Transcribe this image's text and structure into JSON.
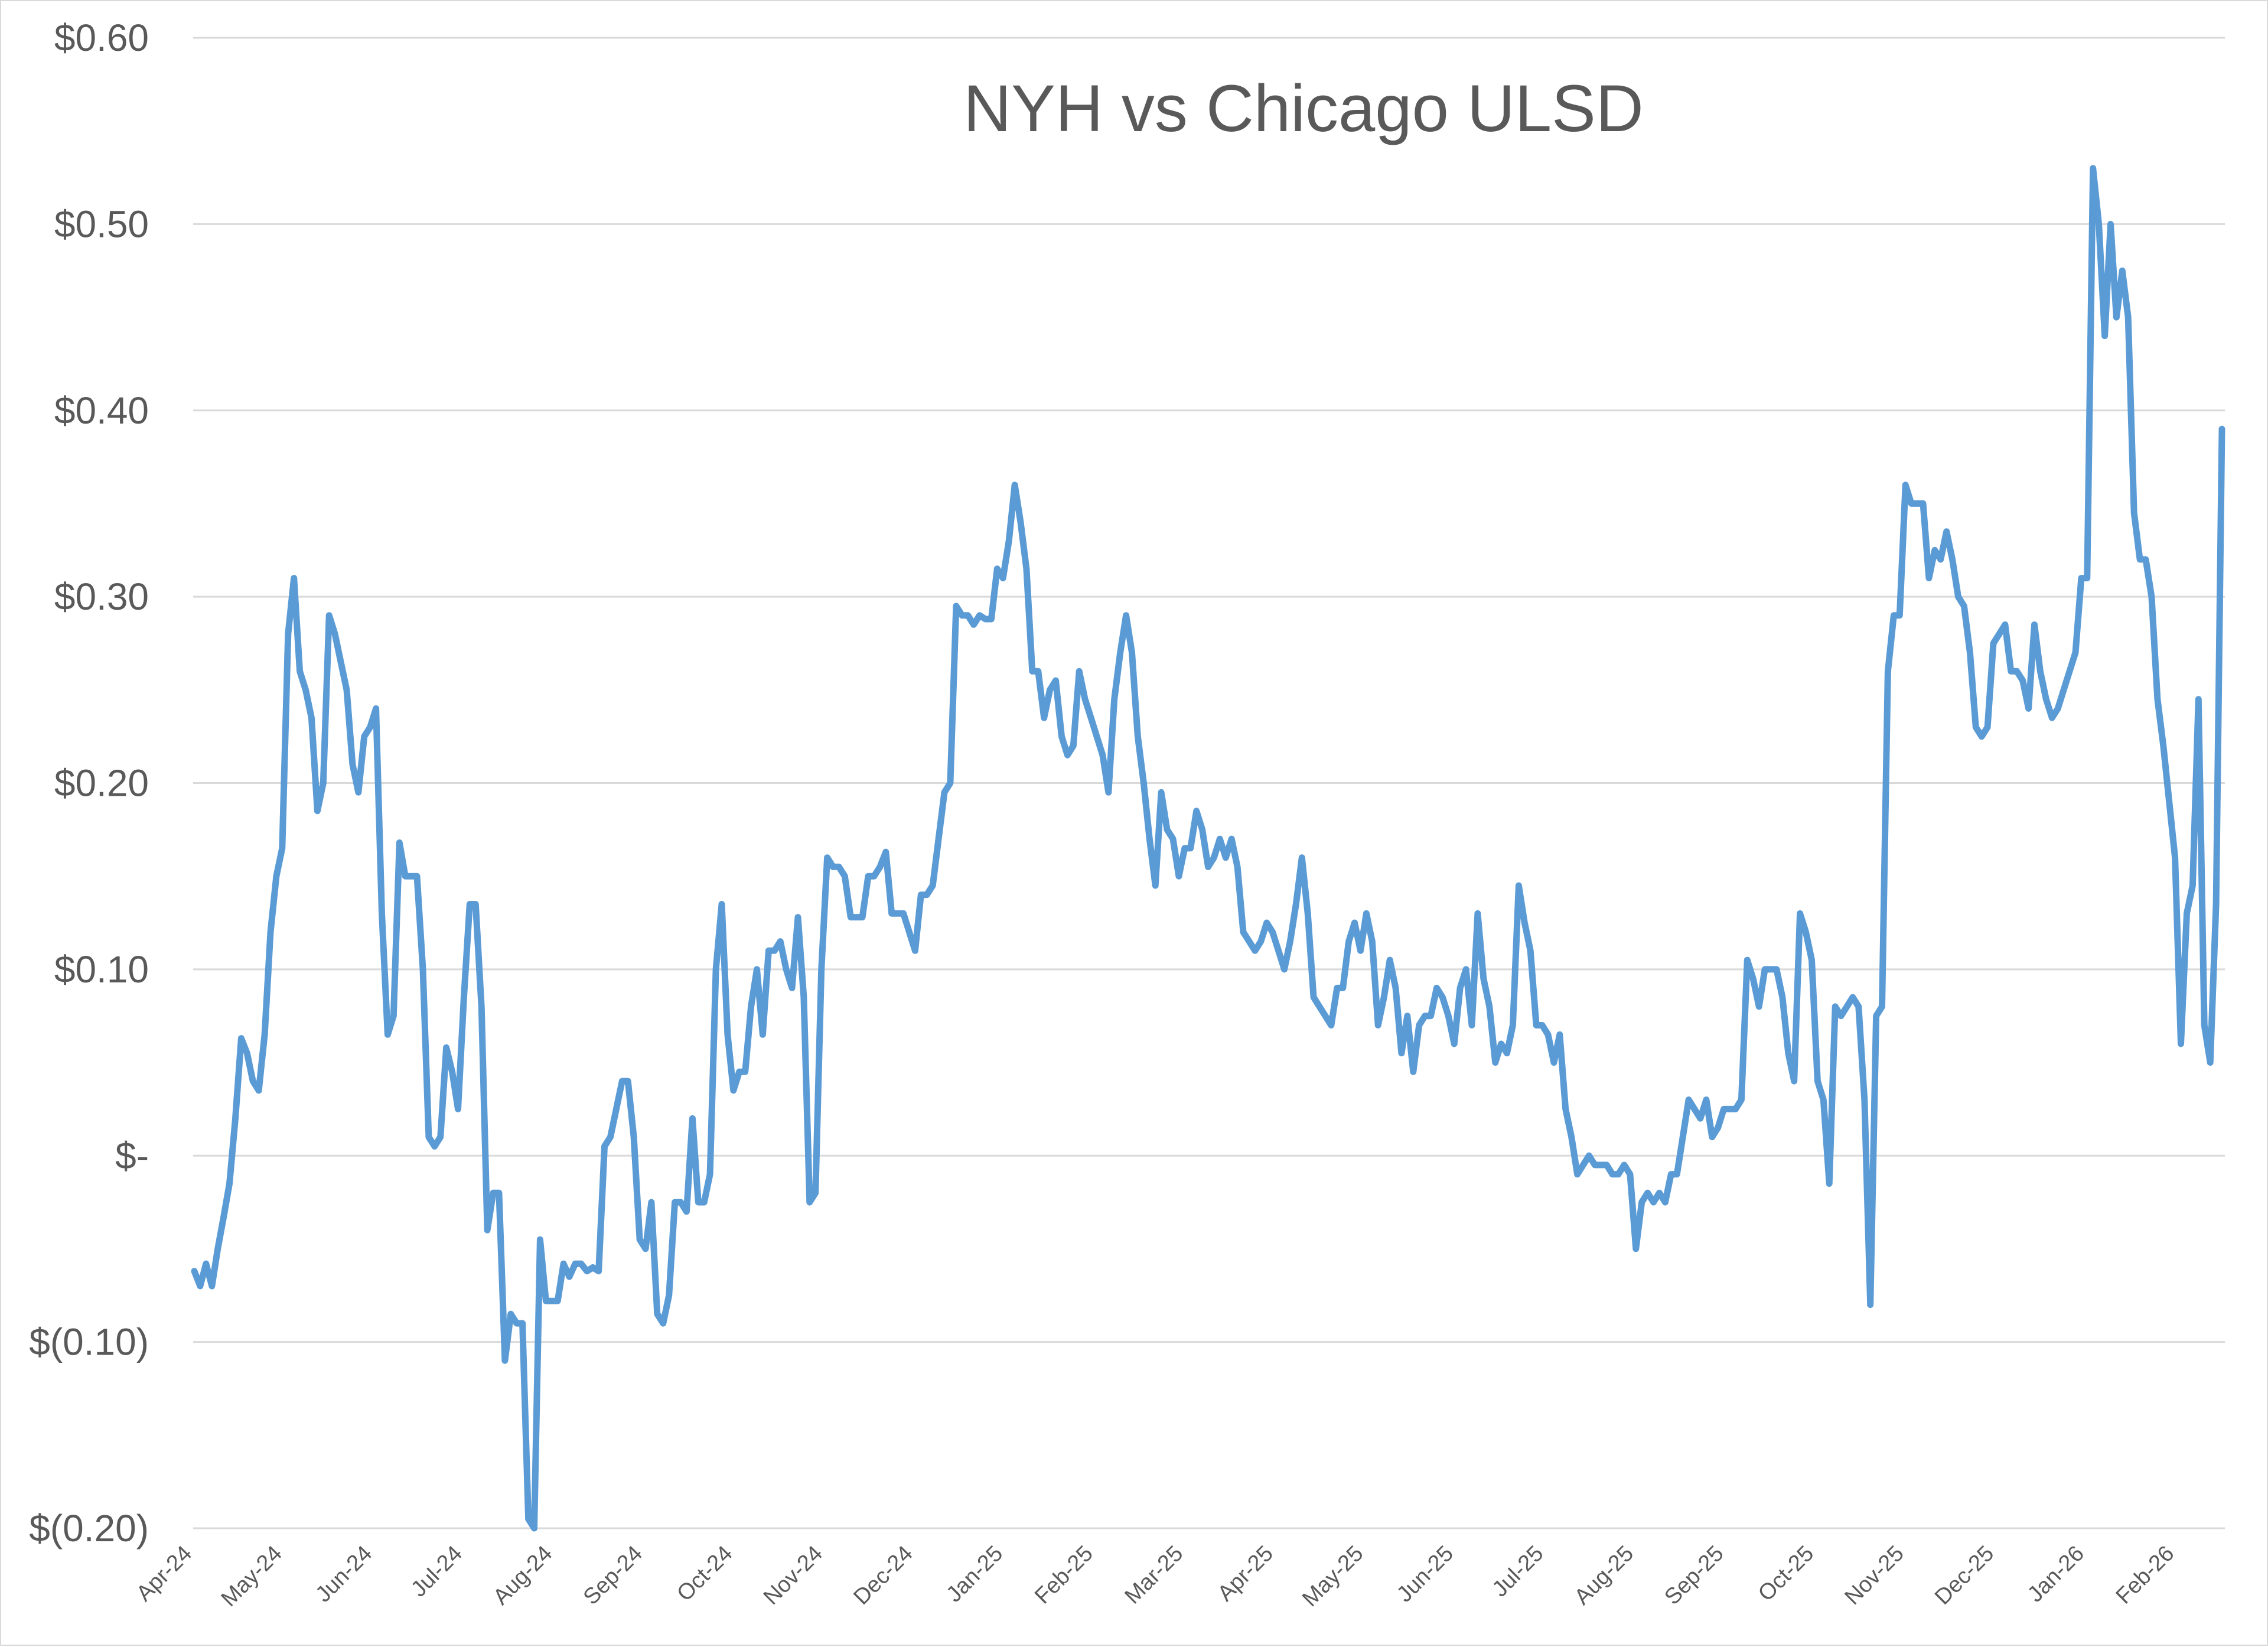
{
  "chart_data": {
    "type": "line",
    "title": "NYH vs Chicago ULSD",
    "xlabel": "",
    "ylabel": "",
    "ylim": [
      -0.2,
      0.6
    ],
    "yticks": [
      {
        "value": 0.6,
        "label": "$0.60"
      },
      {
        "value": 0.5,
        "label": "$0.50"
      },
      {
        "value": 0.4,
        "label": "$0.40"
      },
      {
        "value": 0.3,
        "label": "$0.30"
      },
      {
        "value": 0.2,
        "label": "$0.20"
      },
      {
        "value": 0.1,
        "label": "$0.10"
      },
      {
        "value": 0.0,
        "label": "$-"
      },
      {
        "value": -0.1,
        "label": "$(0.10)"
      },
      {
        "value": -0.2,
        "label": "$(0.20)"
      }
    ],
    "xticks": [
      "Apr-24",
      "May-24",
      "Jun-24",
      "Jul-24",
      "Aug-24",
      "Sep-24",
      "Oct-24",
      "Nov-24",
      "Dec-24",
      "Jan-25",
      "Feb-25",
      "Mar-25",
      "Apr-25",
      "May-25",
      "Jun-25",
      "Jul-25",
      "Aug-25",
      "Sep-25",
      "Oct-25",
      "Nov-25",
      "Dec-25",
      "Jan-26",
      "Feb-26"
    ],
    "grid": true,
    "legend": "none",
    "line_color": "#5b9bd5",
    "series": [
      {
        "values": [
          -0.062,
          -0.07,
          -0.058,
          -0.07,
          -0.05,
          -0.033,
          -0.015,
          0.02,
          0.063,
          0.055,
          0.04,
          0.035,
          0.065,
          0.12,
          0.15,
          0.165,
          0.28,
          0.31,
          0.26,
          0.25,
          0.235,
          0.185,
          0.2,
          0.29,
          0.28,
          0.265,
          0.25,
          0.21,
          0.195,
          0.225,
          0.23,
          0.24,
          0.13,
          0.065,
          0.075,
          0.168,
          0.15,
          0.15,
          0.15,
          0.1,
          0.01,
          0.005,
          0.01,
          0.058,
          0.045,
          0.025,
          0.085,
          0.135,
          0.135,
          0.08,
          -0.04,
          -0.02,
          -0.02,
          -0.11,
          -0.085,
          -0.09,
          -0.09,
          -0.195,
          -0.2,
          -0.045,
          -0.078,
          -0.078,
          -0.078,
          -0.058,
          -0.065,
          -0.058,
          -0.058,
          -0.062,
          -0.06,
          -0.062,
          0.005,
          0.01,
          0.025,
          0.04,
          0.04,
          0.01,
          -0.045,
          -0.05,
          -0.025,
          -0.085,
          -0.09,
          -0.075,
          -0.025,
          -0.025,
          -0.03,
          0.02,
          -0.025,
          -0.025,
          -0.01,
          0.1,
          0.135,
          0.065,
          0.035,
          0.045,
          0.045,
          0.08,
          0.1,
          0.065,
          0.11,
          0.11,
          0.115,
          0.1,
          0.09,
          0.128,
          0.085,
          -0.025,
          -0.02,
          0.1,
          0.16,
          0.155,
          0.155,
          0.15,
          0.128,
          0.128,
          0.128,
          0.15,
          0.15,
          0.155,
          0.163,
          0.13,
          0.13,
          0.13,
          0.12,
          0.11,
          0.14,
          0.14,
          0.145,
          0.17,
          0.195,
          0.2,
          0.295,
          0.29,
          0.29,
          0.285,
          0.29,
          0.288,
          0.288,
          0.315,
          0.31,
          0.33,
          0.36,
          0.34,
          0.315,
          0.26,
          0.26,
          0.235,
          0.25,
          0.255,
          0.225,
          0.215,
          0.22,
          0.26,
          0.245,
          0.235,
          0.225,
          0.215,
          0.195,
          0.245,
          0.27,
          0.29,
          0.27,
          0.225,
          0.2,
          0.17,
          0.145,
          0.195,
          0.175,
          0.17,
          0.15,
          0.165,
          0.165,
          0.185,
          0.175,
          0.155,
          0.16,
          0.17,
          0.16,
          0.17,
          0.155,
          0.12,
          0.115,
          0.11,
          0.115,
          0.125,
          0.12,
          0.11,
          0.1,
          0.115,
          0.135,
          0.16,
          0.13,
          0.085,
          0.08,
          0.075,
          0.07,
          0.09,
          0.09,
          0.115,
          0.125,
          0.11,
          0.13,
          0.115,
          0.07,
          0.085,
          0.105,
          0.09,
          0.055,
          0.075,
          0.045,
          0.07,
          0.075,
          0.075,
          0.09,
          0.085,
          0.075,
          0.06,
          0.09,
          0.1,
          0.07,
          0.13,
          0.095,
          0.08,
          0.05,
          0.06,
          0.055,
          0.07,
          0.145,
          0.125,
          0.11,
          0.07,
          0.07,
          0.065,
          0.05,
          0.065,
          0.025,
          0.01,
          -0.01,
          -0.005,
          0.0,
          -0.005,
          -0.005,
          -0.005,
          -0.01,
          -0.01,
          -0.005,
          -0.01,
          -0.05,
          -0.025,
          -0.02,
          -0.025,
          -0.02,
          -0.025,
          -0.01,
          -0.01,
          0.01,
          0.03,
          0.025,
          0.02,
          0.03,
          0.01,
          0.015,
          0.025,
          0.025,
          0.025,
          0.03,
          0.105,
          0.095,
          0.08,
          0.1,
          0.1,
          0.1,
          0.085,
          0.055,
          0.04,
          0.13,
          0.12,
          0.105,
          0.04,
          0.03,
          -0.015,
          0.08,
          0.075,
          0.08,
          0.085,
          0.08,
          0.03,
          -0.08,
          0.075,
          0.08,
          0.26,
          0.29,
          0.29,
          0.36,
          0.35,
          0.35,
          0.35,
          0.31,
          0.325,
          0.32,
          0.335,
          0.32,
          0.3,
          0.295,
          0.27,
          0.23,
          0.225,
          0.23,
          0.275,
          0.28,
          0.285,
          0.26,
          0.26,
          0.255,
          0.24,
          0.285,
          0.26,
          0.245,
          0.235,
          0.24,
          0.25,
          0.26,
          0.27,
          0.31,
          0.31,
          0.53,
          0.5,
          0.44,
          0.5,
          0.45,
          0.475,
          0.45,
          0.345,
          0.32,
          0.32,
          0.3,
          0.245,
          0.22,
          0.19,
          0.16,
          0.06,
          0.13,
          0.145,
          0.245,
          0.07,
          0.05,
          0.135,
          0.39
        ]
      }
    ]
  }
}
